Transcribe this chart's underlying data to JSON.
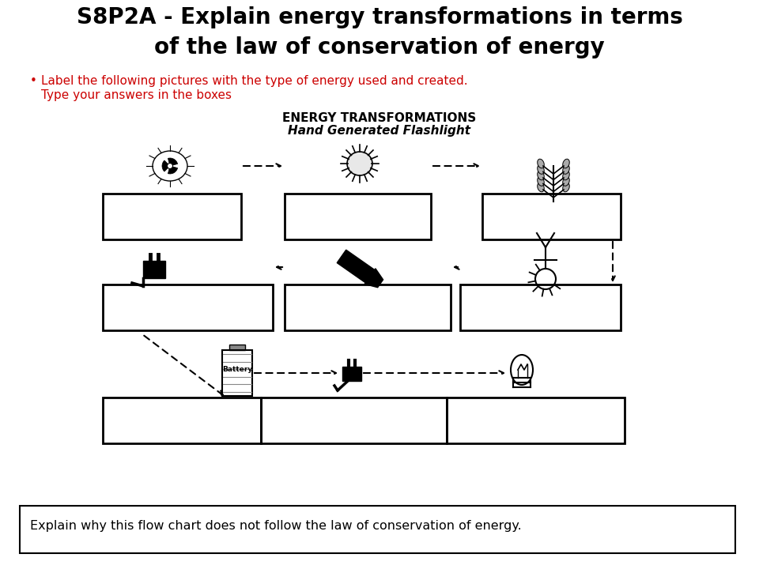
{
  "title_line1": "S8P2A - Explain energy transformations in terms",
  "title_line2": "of the law of conservation of energy",
  "bullet_line1": "Label the following pictures with the type of energy used and created.",
  "bullet_line2": "Type your answers in the boxes",
  "diagram_title1": "ENERGY TRANSFORMATIONS",
  "diagram_title2": "Hand Generated Flashlight",
  "bottom_text": "Explain why this flow chart does not follow the law of conservation of energy.",
  "bg_color": "#ffffff",
  "title_color": "#000000",
  "red_color": "#cc0000",
  "fig_width": 9.6,
  "fig_height": 7.2,
  "dpi": 100
}
